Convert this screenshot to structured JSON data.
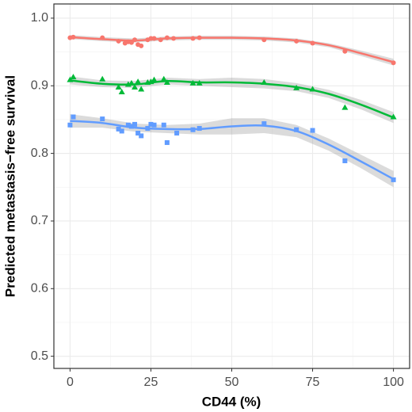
{
  "chart_data": {
    "type": "scatter",
    "xlabel": "CD44 (%)",
    "ylabel": "Predicted metastasis−free survival",
    "xlim": [
      -5,
      105
    ],
    "ylim": [
      0.482,
      1.021
    ],
    "xticks": [
      0,
      25,
      50,
      75,
      100
    ],
    "yticks": [
      0.5,
      0.6,
      0.7,
      0.8,
      0.9,
      {
        "value": 1,
        "label": "1.0"
      }
    ],
    "grid": true,
    "minor_grid": true,
    "fit_x": [
      0,
      10,
      20,
      30,
      40,
      50,
      60,
      70,
      80,
      90,
      100
    ],
    "series": [
      {
        "color": "#F8766D",
        "marker": "circle",
        "x": [
          0,
          1,
          10,
          15,
          17,
          18,
          19,
          20,
          21,
          22,
          24,
          25,
          26,
          28,
          30,
          32,
          38,
          40,
          60,
          70,
          75,
          85,
          100
        ],
        "values": [
          0.971,
          0.972,
          0.971,
          0.966,
          0.963,
          0.965,
          0.964,
          0.968,
          0.961,
          0.959,
          0.968,
          0.97,
          0.97,
          0.968,
          0.971,
          0.97,
          0.97,
          0.971,
          0.968,
          0.966,
          0.963,
          0.951,
          0.934
        ],
        "fit_values": [
          0.972,
          0.969,
          0.967,
          0.97,
          0.971,
          0.971,
          0.97,
          0.967,
          0.96,
          0.948,
          0.935
        ],
        "fit_lower": [
          0.969,
          0.966,
          0.964,
          0.967,
          0.968,
          0.968,
          0.967,
          0.964,
          0.957,
          0.944,
          0.93
        ],
        "fit_upper": [
          0.975,
          0.972,
          0.97,
          0.973,
          0.974,
          0.974,
          0.973,
          0.97,
          0.963,
          0.952,
          0.94
        ]
      },
      {
        "color": "#00BA38",
        "marker": "triangle",
        "x": [
          0,
          1,
          10,
          15,
          16,
          18,
          19,
          20,
          21,
          22,
          24,
          25,
          26,
          29,
          30,
          38,
          40,
          60,
          70,
          75,
          85,
          100
        ],
        "values": [
          0.909,
          0.913,
          0.91,
          0.898,
          0.891,
          0.902,
          0.904,
          0.898,
          0.906,
          0.895,
          0.905,
          0.906,
          0.909,
          0.91,
          0.905,
          0.904,
          0.904,
          0.905,
          0.897,
          0.895,
          0.868,
          0.854
        ],
        "fit_values": [
          0.908,
          0.903,
          0.902,
          0.907,
          0.905,
          0.905,
          0.903,
          0.898,
          0.888,
          0.872,
          0.853
        ],
        "fit_lower": [
          0.902,
          0.898,
          0.897,
          0.902,
          0.9,
          0.898,
          0.896,
          0.892,
          0.882,
          0.865,
          0.845
        ],
        "fit_upper": [
          0.914,
          0.908,
          0.907,
          0.912,
          0.91,
          0.912,
          0.91,
          0.904,
          0.894,
          0.879,
          0.861
        ]
      },
      {
        "color": "#619CFF",
        "marker": "square",
        "x": [
          0,
          1,
          10,
          15,
          16,
          18,
          19,
          20,
          21,
          22,
          24,
          25,
          26,
          29,
          30,
          33,
          38,
          40,
          60,
          70,
          75,
          85,
          100
        ],
        "values": [
          0.842,
          0.854,
          0.851,
          0.836,
          0.833,
          0.842,
          0.84,
          0.843,
          0.83,
          0.826,
          0.837,
          0.843,
          0.842,
          0.842,
          0.816,
          0.83,
          0.835,
          0.837,
          0.844,
          0.835,
          0.834,
          0.789,
          0.761
        ],
        "fit_values": [
          0.848,
          0.845,
          0.838,
          0.836,
          0.836,
          0.84,
          0.841,
          0.833,
          0.813,
          0.788,
          0.762
        ],
        "fit_lower": [
          0.838,
          0.838,
          0.832,
          0.83,
          0.828,
          0.828,
          0.83,
          0.824,
          0.804,
          0.778,
          0.75
        ],
        "fit_upper": [
          0.858,
          0.852,
          0.844,
          0.842,
          0.844,
          0.852,
          0.852,
          0.842,
          0.822,
          0.798,
          0.774
        ]
      }
    ]
  }
}
